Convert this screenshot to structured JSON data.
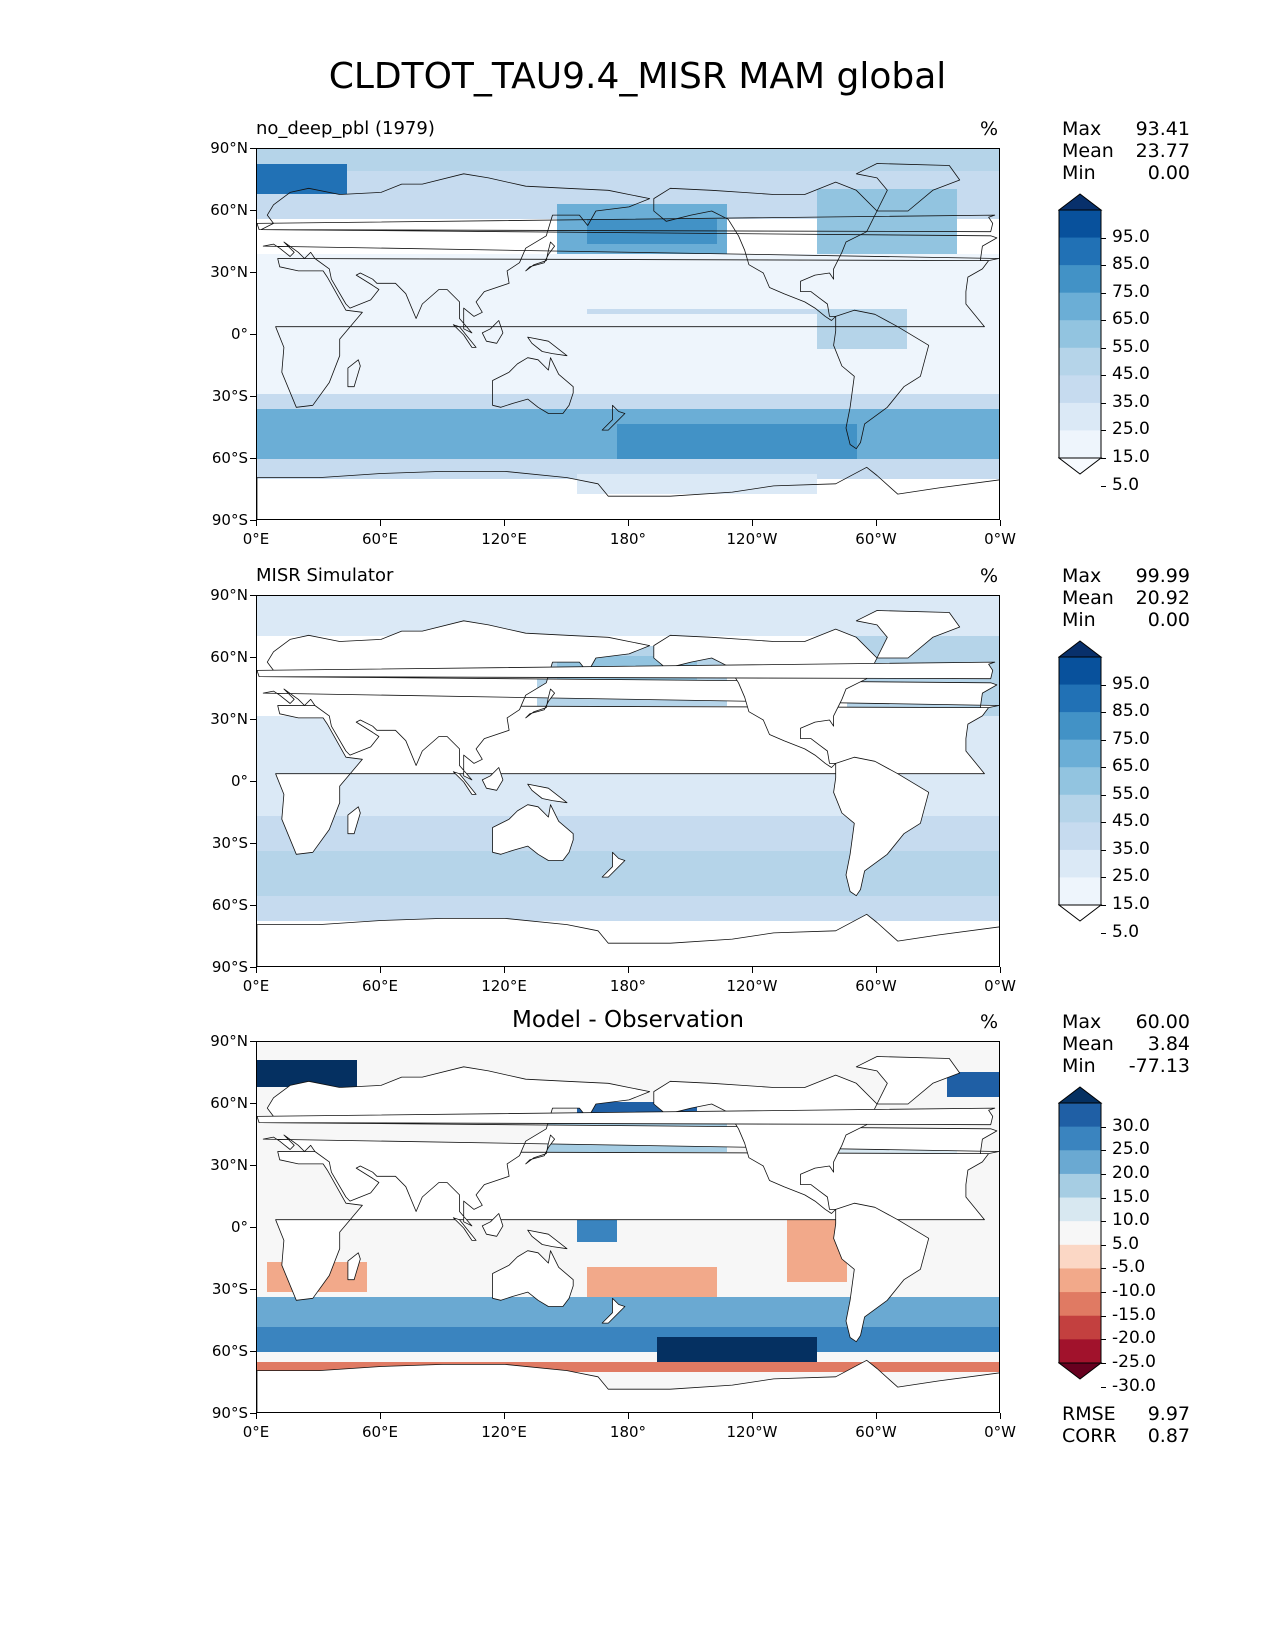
{
  "figure": {
    "title": "CLDTOT_TAU9.4_MISR MAM global"
  },
  "axes": {
    "y_ticks": [
      "90°N",
      "60°N",
      "30°N",
      "0°",
      "30°S",
      "60°S",
      "90°S"
    ],
    "x_ticks": [
      "0°E",
      "60°E",
      "120°E",
      "180°",
      "120°W",
      "60°W",
      "0°W"
    ]
  },
  "panels": [
    {
      "id": "test",
      "title": "no_deep_pbl (1979)",
      "title_style": "left",
      "units": "%",
      "stats": [
        {
          "label": "Max",
          "value": "93.41"
        },
        {
          "label": "Mean",
          "value": "23.77"
        },
        {
          "label": "Min",
          "value": "0.00"
        }
      ],
      "colorbar_labels": [
        "95.0",
        "85.0",
        "75.0",
        "65.0",
        "55.0",
        "45.0",
        "35.0",
        "25.0",
        "15.0",
        "5.0"
      ],
      "colorbar_colors": [
        "#08306b",
        "#08519c",
        "#2171b5",
        "#4292c6",
        "#6baed6",
        "#92c4e0",
        "#b5d4e9",
        "#c6dbef",
        "#dbe9f6",
        "#eef5fc",
        "#f7fbff"
      ]
    },
    {
      "id": "ref",
      "title": "MISR Simulator",
      "title_style": "left",
      "units": "%",
      "stats": [
        {
          "label": "Max",
          "value": "99.99"
        },
        {
          "label": "Mean",
          "value": "20.92"
        },
        {
          "label": "Min",
          "value": "0.00"
        }
      ],
      "colorbar_labels": [
        "95.0",
        "85.0",
        "75.0",
        "65.0",
        "55.0",
        "45.0",
        "35.0",
        "25.0",
        "15.0",
        "5.0"
      ],
      "colorbar_colors": [
        "#08306b",
        "#08519c",
        "#2171b5",
        "#4292c6",
        "#6baed6",
        "#92c4e0",
        "#b5d4e9",
        "#c6dbef",
        "#dbe9f6",
        "#eef5fc",
        "#ffffff"
      ]
    },
    {
      "id": "diff",
      "title": "Model - Observation",
      "title_style": "center",
      "units": "%",
      "stats": [
        {
          "label": "Max",
          "value": "60.00"
        },
        {
          "label": "Mean",
          "value": "3.84"
        },
        {
          "label": "Min",
          "value": "-77.13"
        }
      ],
      "bottom_stats": [
        {
          "label": "RMSE",
          "value": "9.97"
        },
        {
          "label": "CORR",
          "value": "0.87"
        }
      ],
      "colorbar_labels": [
        "30.0",
        "25.0",
        "20.0",
        "15.0",
        "10.0",
        "5.0",
        "-5.0",
        "-10.0",
        "-15.0",
        "-20.0",
        "-25.0",
        "-30.0"
      ],
      "colorbar_colors": [
        "#053061",
        "#1f5fa5",
        "#3a84bf",
        "#6aa9d2",
        "#a6cde3",
        "#d8e8f1",
        "#f7f7f7",
        "#fbd7c5",
        "#f2a98a",
        "#e07a63",
        "#c3403f",
        "#a1122c",
        "#67001f"
      ]
    }
  ]
}
